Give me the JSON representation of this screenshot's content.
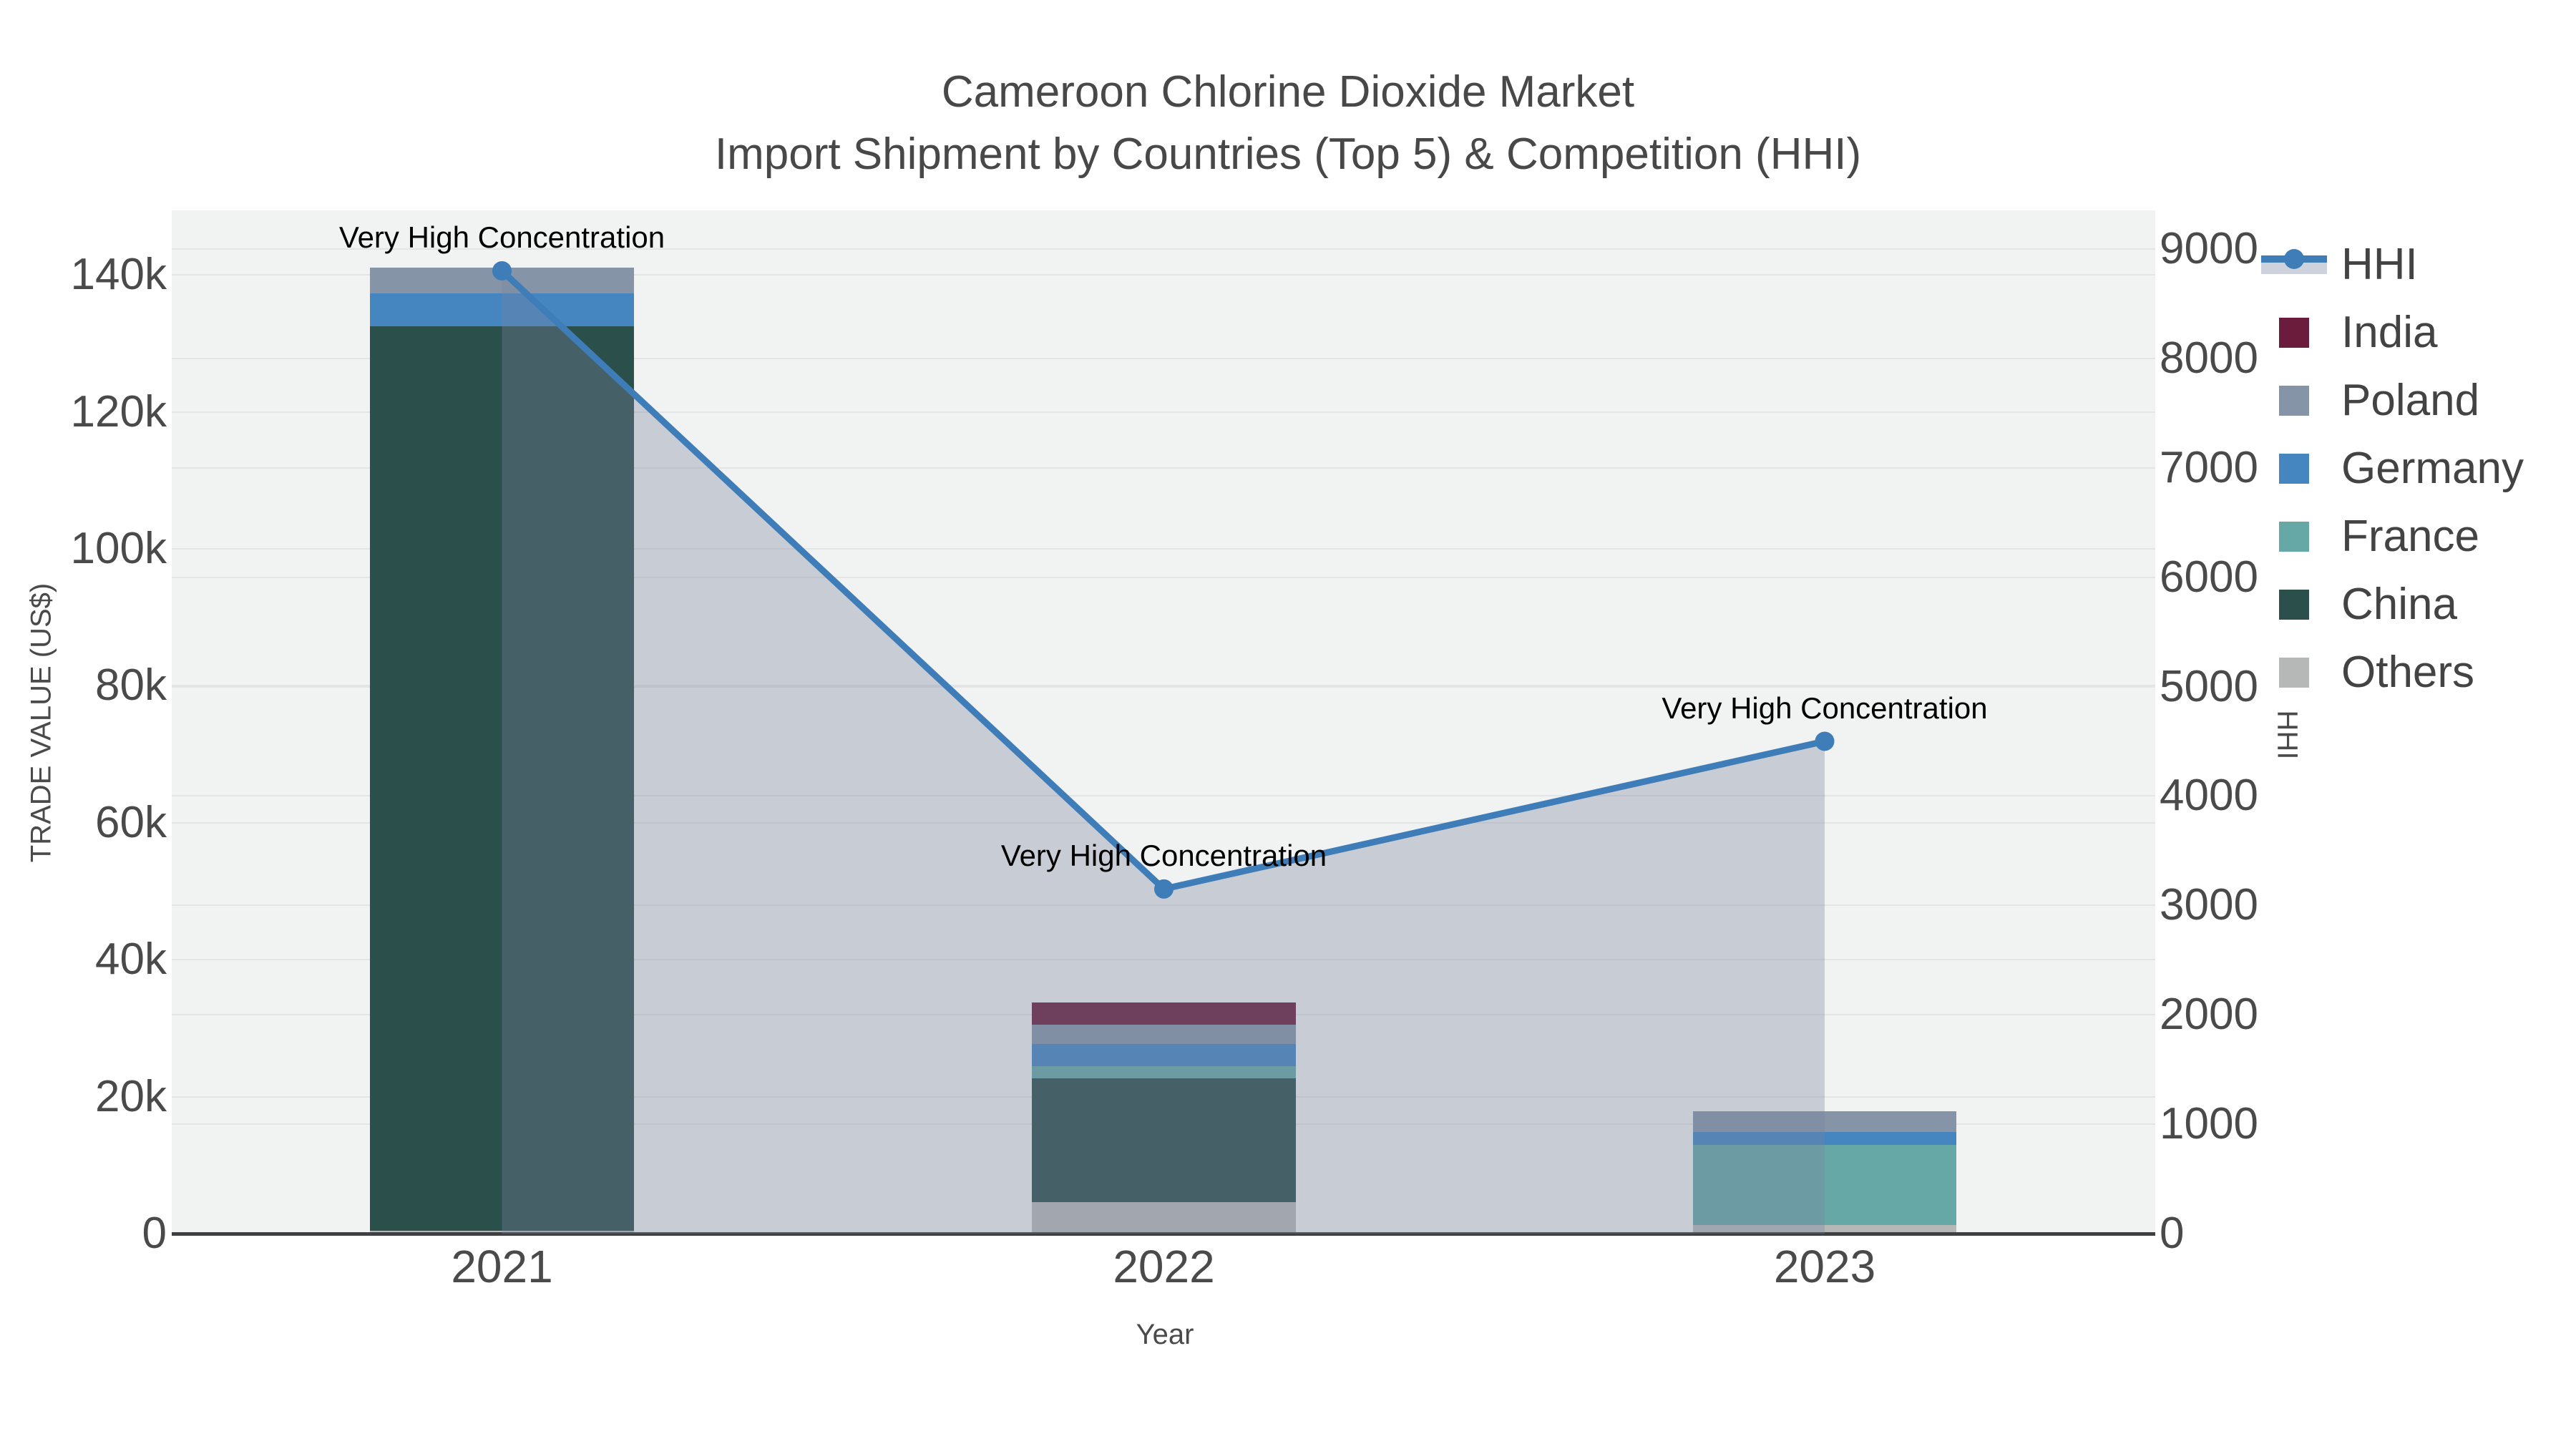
{
  "title": {
    "line1": "Cameroon Chlorine Dioxide Market",
    "line2": "Import Shipment by Countries (Top 5) & Competition (HHI)"
  },
  "axes": {
    "left": {
      "title": "TRADE VALUE (US$)",
      "tick_labels": [
        "0",
        "20k",
        "40k",
        "60k",
        "80k",
        "100k",
        "120k",
        "140k"
      ],
      "tick_values": [
        0,
        20000,
        40000,
        60000,
        80000,
        100000,
        120000,
        140000
      ]
    },
    "right": {
      "title": "HHI",
      "tick_labels": [
        "0",
        "1000",
        "2000",
        "3000",
        "4000",
        "5000",
        "6000",
        "7000",
        "8000",
        "9000"
      ],
      "tick_values": [
        0,
        1000,
        2000,
        3000,
        4000,
        5000,
        6000,
        7000,
        8000,
        9000
      ]
    },
    "x": {
      "title": "Year",
      "tick_labels": [
        "2021",
        "2022",
        "2023"
      ]
    }
  },
  "legend": {
    "items": [
      {
        "label": "HHI",
        "type": "line",
        "color": "#3e7db8",
        "band_color": "#cdd2dc"
      },
      {
        "label": "India",
        "type": "square",
        "color": "#6b1c3d"
      },
      {
        "label": "Poland",
        "type": "square",
        "color": "#8595a7"
      },
      {
        "label": "Germany",
        "type": "square",
        "color": "#4586c1"
      },
      {
        "label": "France",
        "type": "square",
        "color": "#66a8a6"
      },
      {
        "label": "China",
        "type": "square",
        "color": "#2b4f4b"
      },
      {
        "label": "Others",
        "type": "square",
        "color": "#b6b8b8"
      }
    ]
  },
  "chart_data": {
    "type": "combo_stacked_bar_line",
    "title": "Cameroon Chlorine Dioxide Market — Import Shipment by Countries (Top 5) & Competition (HHI)",
    "categories": [
      "2021",
      "2022",
      "2023"
    ],
    "xlabel": "Year",
    "ylabel_left": "TRADE VALUE (US$)",
    "ylabel_right": "HHI",
    "ylim_left": [
      0,
      149000
    ],
    "ylim_right": [
      0,
      9350
    ],
    "grid": true,
    "legend_position": "right",
    "series": [
      {
        "name": "India",
        "type": "bar",
        "color": "#6b1c3d",
        "values": [
          0,
          3200,
          0
        ]
      },
      {
        "name": "Poland",
        "type": "bar",
        "color": "#8595a7",
        "values": [
          3700,
          2800,
          3100
        ]
      },
      {
        "name": "Germany",
        "type": "bar",
        "color": "#4586c1",
        "values": [
          4900,
          3200,
          1800
        ]
      },
      {
        "name": "France",
        "type": "bar",
        "color": "#66a8a6",
        "values": [
          0,
          1800,
          11700
        ]
      },
      {
        "name": "China",
        "type": "bar",
        "color": "#2b4f4b",
        "values": [
          132000,
          18100,
          0
        ]
      },
      {
        "name": "Others",
        "type": "bar",
        "color": "#b6b8b8",
        "values": [
          450,
          4600,
          1300
        ]
      }
    ],
    "bar_totals": [
      141050,
      33700,
      17900
    ],
    "stack_order_bottom_to_top": [
      "Others",
      "China",
      "France",
      "Germany",
      "Poland",
      "India"
    ],
    "line_series": {
      "name": "HHI",
      "axis": "right",
      "color": "#3e7db8",
      "fill": "tozeroy",
      "fill_color": "rgba(119,132,158,0.34)",
      "values": [
        8800,
        3150,
        4500
      ]
    },
    "annotations": [
      {
        "text": "Very High Concentration",
        "category": "2021"
      },
      {
        "text": "Very High Concentration",
        "category": "2022"
      },
      {
        "text": "Very High Concentration",
        "category": "2023"
      }
    ]
  }
}
